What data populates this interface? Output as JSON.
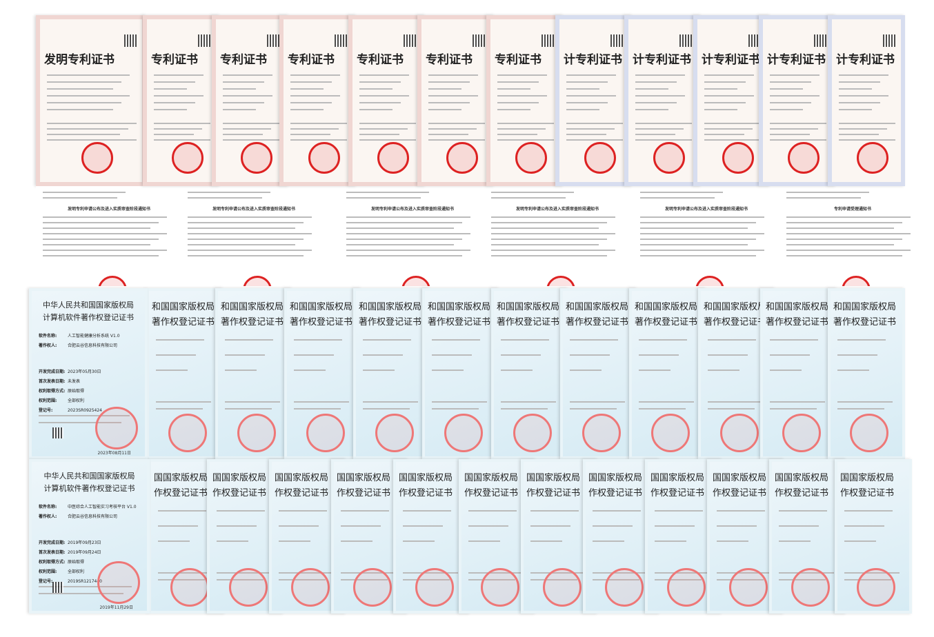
{
  "patents": [
    {
      "title": "发明专利证书"
    },
    {
      "title": "专利证书"
    },
    {
      "title": "专利证书"
    },
    {
      "title": "专利证书"
    },
    {
      "title": "专利证书"
    },
    {
      "title": "专利证书"
    },
    {
      "title": "专利证书"
    },
    {
      "title": "计专利证书"
    },
    {
      "title": "计专利证书"
    },
    {
      "title": "计专利证书"
    },
    {
      "title": "计专利证书"
    },
    {
      "title": "计专利证书"
    }
  ],
  "notices": [
    {
      "title": "发明专利申请公布及进入实质审查阶段通知书"
    },
    {
      "title": "发明专利申请公布及进入实质审查阶段通知书"
    },
    {
      "title": "发明专利申请公布及进入实质审查阶段通知书"
    },
    {
      "title": "发明专利申请公布及进入实质审查阶段通知书"
    },
    {
      "title": "发明专利申请公布及进入实质审查阶段通知书"
    },
    {
      "title": "专利申请受理通知书"
    }
  ],
  "software_top": {
    "agency": "中华人民共和国国家版权局",
    "title": "计算机软件著作权登记证书",
    "fields": [
      {
        "label": "软件名称:",
        "value": "人工智能健康分析系统 V1.0"
      },
      {
        "label": "著作权人:",
        "value": "合肥云谷信息科技有限公司"
      },
      {
        "label": "开发完成日期:",
        "value": "2023年05月30日"
      },
      {
        "label": "首次发表日期:",
        "value": "未发表"
      },
      {
        "label": "权利取得方式:",
        "value": "原始取得"
      },
      {
        "label": "权利范围:",
        "value": "全部权利"
      },
      {
        "label": "登记号:",
        "value": "2023SR0925424"
      }
    ],
    "date": "2023年08月11日",
    "others": [
      {
        "agency": "和国国家版权局",
        "title": "著作权登记证书"
      },
      {
        "agency": "和国国家版权局",
        "title": "著作权登记证书"
      },
      {
        "agency": "和国国家版权局",
        "title": "著作权登记证书"
      },
      {
        "agency": "和国国家版权局",
        "title": "著作权登记证书"
      },
      {
        "agency": "和国国家版权局",
        "title": "著作权登记证书"
      },
      {
        "agency": "和国国家版权局",
        "title": "著作权登记证书"
      },
      {
        "agency": "和国国家版权局",
        "title": "著作权登记证书"
      },
      {
        "agency": "和国国家版权局",
        "title": "著作权登记证书"
      },
      {
        "agency": "和国国家版权局",
        "title": "著作权登记证书"
      },
      {
        "agency": "和国国家版权局",
        "title": "著作权登记证书"
      },
      {
        "agency": "和国国家版权局",
        "title": "著作权登记证书"
      }
    ]
  },
  "software_bottom": {
    "agency": "中华人民共和国国家版权局",
    "title": "计算机软件著作权登记证书",
    "fields": [
      {
        "label": "软件名称:",
        "value": "中医综合人工智能实习考核平台 V1.0"
      },
      {
        "label": "著作权人:",
        "value": "合肥云谷信息科技有限公司"
      },
      {
        "label": "开发完成日期:",
        "value": "2019年09月23日"
      },
      {
        "label": "首次发表日期:",
        "value": "2019年09月24日"
      },
      {
        "label": "权利取得方式:",
        "value": "原始取得"
      },
      {
        "label": "权利范围:",
        "value": "全部权利"
      },
      {
        "label": "登记号:",
        "value": "2019SR1217440"
      }
    ],
    "date": "2019年11月29日",
    "others": [
      {
        "agency": "国国家版权局",
        "title": "作权登记证书"
      },
      {
        "agency": "国国家版权局",
        "title": "作权登记证书"
      },
      {
        "agency": "国国家版权局",
        "title": "作权登记证书"
      },
      {
        "agency": "国国家版权局",
        "title": "作权登记证书"
      },
      {
        "agency": "国国家版权局",
        "title": "作权登记证书"
      },
      {
        "agency": "国国家版权局",
        "title": "作权登记证书"
      },
      {
        "agency": "国国家版权局",
        "title": "作权登记证书"
      },
      {
        "agency": "国国家版权局",
        "title": "作权登记证书"
      },
      {
        "agency": "国国家版权局",
        "title": "作权登记证书"
      },
      {
        "agency": "国国家版权局",
        "title": "作权登记证书"
      },
      {
        "agency": "国国家版权局",
        "title": "作权登记证书"
      },
      {
        "agency": "国国家版权局",
        "title": "作权登记证书"
      }
    ]
  }
}
